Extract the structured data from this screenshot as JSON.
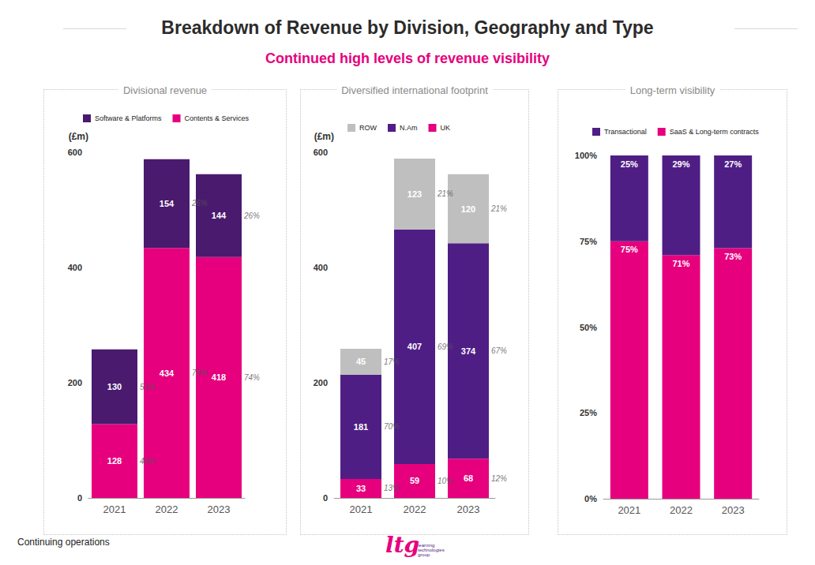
{
  "header": {
    "title": "Breakdown of Revenue by Division, Geography and Type",
    "subtitle": "Continued high levels of revenue visibility"
  },
  "footer": {
    "note": "Continuing operations",
    "logo": "ltg",
    "logo_caption": "learning technologies group"
  },
  "chart_data": [
    {
      "type": "bar",
      "title": "Divisional revenue",
      "ylabel": "(£m)",
      "categories": [
        "2021",
        "2022",
        "2023"
      ],
      "series": [
        {
          "name": "Contents & Services",
          "color": "#e6007e",
          "values": [
            128,
            434,
            418
          ],
          "share_labels": [
            "49%",
            "74%",
            "74%"
          ]
        },
        {
          "name": "Software & Platforms",
          "color": "#4a1a6e",
          "values": [
            130,
            154,
            144
          ],
          "share_labels": [
            "51%",
            "26%",
            "26%"
          ]
        }
      ],
      "ylim": [
        0,
        600
      ],
      "yticks": [
        0,
        200,
        400,
        600
      ],
      "grid": false,
      "stacked": true,
      "data_labels": true,
      "legend": "top-left"
    },
    {
      "type": "bar",
      "title": "Diversified international footprint",
      "ylabel": "(£m)",
      "categories": [
        "2021",
        "2022",
        "2023"
      ],
      "series": [
        {
          "name": "UK",
          "color": "#e6007e",
          "values": [
            33,
            59,
            68
          ],
          "share_labels": [
            "13%",
            "10%",
            "12%"
          ]
        },
        {
          "name": "N.Am",
          "color": "#4f1e85",
          "values": [
            181,
            407,
            374
          ],
          "share_labels": [
            "70%",
            "69%",
            "67%"
          ]
        },
        {
          "name": "ROW",
          "color": "#bfbfbf",
          "values": [
            45,
            123,
            120
          ],
          "share_labels": [
            "17%",
            "21%",
            "21%"
          ]
        }
      ],
      "ylim": [
        0,
        600
      ],
      "yticks": [
        0,
        200,
        400,
        600
      ],
      "grid": false,
      "stacked": true,
      "data_labels": true,
      "legend": "top-left"
    },
    {
      "type": "bar",
      "title": "Long-term visibility",
      "categories": [
        "2021",
        "2022",
        "2023"
      ],
      "series": [
        {
          "name": "SaaS & Long-term contracts",
          "color": "#e6007e",
          "values": [
            75,
            71,
            73
          ],
          "value_labels": [
            "75%",
            "71%",
            "73%"
          ]
        },
        {
          "name": "Transactional",
          "color": "#4f1e85",
          "values": [
            25,
            29,
            27
          ],
          "value_labels": [
            "25%",
            "29%",
            "27%"
          ]
        }
      ],
      "ylim": [
        0,
        100
      ],
      "yticks": [
        {
          "value": 0,
          "label": "0%"
        },
        {
          "value": 25,
          "label": "25%"
        },
        {
          "value": 50,
          "label": "50%"
        },
        {
          "value": 75,
          "label": "75%"
        },
        {
          "value": 100,
          "label": "100%"
        }
      ],
      "grid": false,
      "stacked": true,
      "data_labels": true,
      "legend": "top-left"
    }
  ]
}
